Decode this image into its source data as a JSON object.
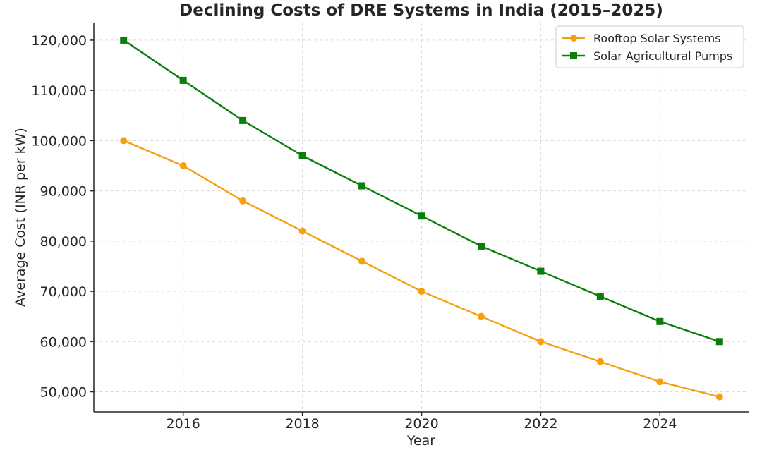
{
  "chart_data": {
    "type": "line",
    "title": "Declining Costs of DRE Systems in India (2015–2025)",
    "xlabel": "Year",
    "ylabel": "Average Cost (INR per kW)",
    "x": [
      2015,
      2016,
      2017,
      2018,
      2019,
      2020,
      2021,
      2022,
      2023,
      2024,
      2025
    ],
    "xlim": [
      2014.5,
      2025.5
    ],
    "ylim": [
      46000,
      123500
    ],
    "xticks": [
      2016,
      2018,
      2020,
      2022,
      2024
    ],
    "xtick_labels": [
      "2016",
      "2018",
      "2020",
      "2022",
      "2024"
    ],
    "yticks": [
      50000,
      60000,
      70000,
      80000,
      90000,
      100000,
      110000,
      120000
    ],
    "ytick_labels": [
      "50,000",
      "60,000",
      "70,000",
      "80,000",
      "90,000",
      "100,000",
      "110,000",
      "120,000"
    ],
    "grid": true,
    "legend_position": "top-right",
    "series": [
      {
        "name": "Rooftop Solar Systems",
        "color": "#f5a00f",
        "marker": "circle",
        "values": [
          100000,
          95000,
          88000,
          82000,
          76000,
          70000,
          65000,
          60000,
          56000,
          52000,
          49000
        ]
      },
      {
        "name": "Solar Agricultural Pumps",
        "color": "#0a7d0a",
        "marker": "square",
        "values": [
          120000,
          112000,
          104000,
          97000,
          91000,
          85000,
          79000,
          74000,
          69000,
          64000,
          60000
        ]
      }
    ]
  }
}
